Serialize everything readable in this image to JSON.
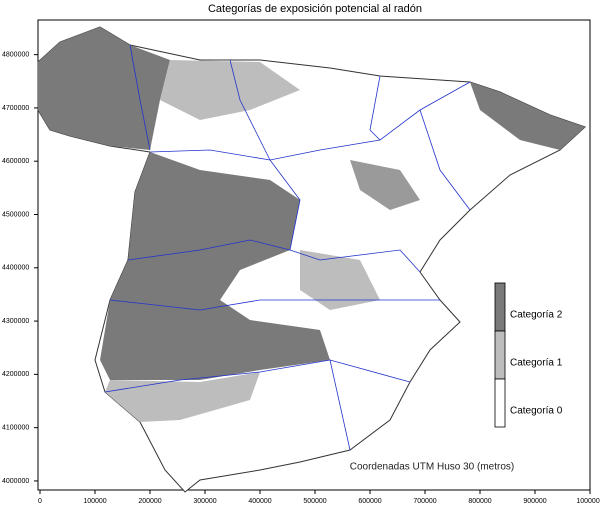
{
  "map": {
    "title": "Categorías de exposición potencial al radón",
    "note": "Coordenadas UTM Huso 30 (metros)",
    "xlim": [
      0,
      1000000
    ],
    "ylim": [
      3983000,
      4865000
    ],
    "xticks": [
      0,
      100000,
      200000,
      300000,
      400000,
      500000,
      600000,
      700000,
      800000,
      900000,
      1000000
    ],
    "yticks": [
      4000000,
      4100000,
      4200000,
      4300000,
      4400000,
      4500000,
      4600000,
      4700000,
      4800000
    ],
    "legend": [
      {
        "name": "Categoría 2",
        "color": "#7a7a7a"
      },
      {
        "name": "Categoría 1",
        "color": "#bdbdbd"
      },
      {
        "name": "Categoría 0",
        "color": "#ffffff"
      }
    ]
  }
}
